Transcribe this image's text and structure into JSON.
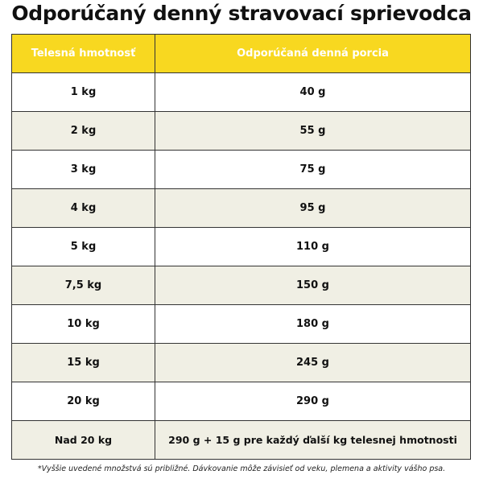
{
  "title": "Odporúčaný denný stravovací sprievodca",
  "table": {
    "headers": [
      "Telesná hmotnosť",
      "Odporúčaná denná porcia"
    ],
    "rows": [
      {
        "weight": "1 kg",
        "portion": "40 g"
      },
      {
        "weight": "2 kg",
        "portion": "55 g"
      },
      {
        "weight": "3 kg",
        "portion": "75 g"
      },
      {
        "weight": "4 kg",
        "portion": "95 g"
      },
      {
        "weight": "5 kg",
        "portion": "110 g"
      },
      {
        "weight": "7,5 kg",
        "portion": "150 g"
      },
      {
        "weight": "10 kg",
        "portion": "180 g"
      },
      {
        "weight": "15 kg",
        "portion": "245 g"
      },
      {
        "weight": "20 kg",
        "portion": "290 g"
      },
      {
        "weight": "Nad 20 kg",
        "portion": "290 g + 15 g pre každý ďalší kg telesnej hmotnosti"
      }
    ]
  },
  "footnote": "*Vyššie uvedené množstvá sú približné. Dávkovanie môže závisieť od veku, plemena a aktivity vášho psa.",
  "colors": {
    "header_background": "#f8d820",
    "header_text": "#ffffff",
    "stripe_background": "#f0efe4",
    "border": "#333333"
  }
}
